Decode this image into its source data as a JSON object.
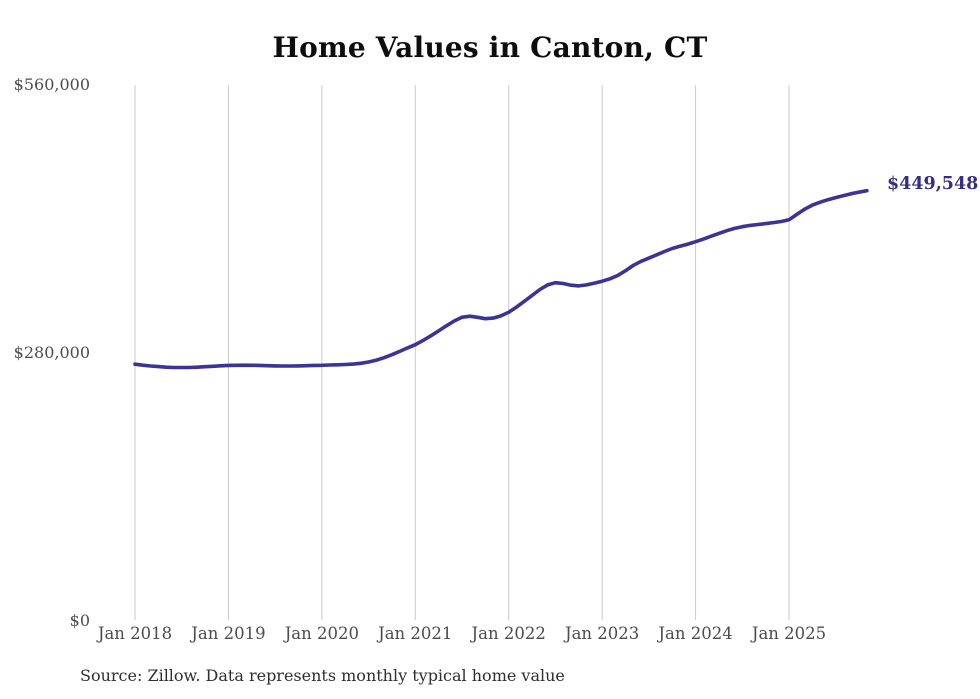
{
  "chart": {
    "title": "Home Values in Canton, CT",
    "source_note": "Source: Zillow. Data represents monthly typical home value",
    "last_value_label": "$449,548"
  },
  "colors": {
    "line": "#3c3494",
    "last_value_label": "#322e82",
    "gridline": "#cbcbcb",
    "axis_tick_text": "#4c4c4c",
    "title_text": "#0d0d0d",
    "source_text": "#2e2e2e",
    "background": "#ffffff"
  },
  "chart_data": {
    "type": "line",
    "title": "Home Values in Canton, CT",
    "xlabel": "",
    "ylabel": "",
    "x_tick_labels": [
      "Jan 2018",
      "Jan 2019",
      "Jan 2020",
      "Jan 2021",
      "Jan 2022",
      "Jan 2023",
      "Jan 2024",
      "Jan 2025"
    ],
    "y_tick_labels": [
      "$0",
      "$280,000",
      "$560,000"
    ],
    "ylim": [
      0,
      560000
    ],
    "grid": "vertical-year-gridlines-only",
    "legend": "none",
    "frequency": "monthly",
    "x_start": "Jan 2018",
    "x_end": "Nov 2025",
    "series": [
      {
        "name": "Typical home value",
        "values": [
          268300,
          267300,
          266400,
          265800,
          265200,
          264900,
          264800,
          264900,
          265200,
          265700,
          266100,
          266600,
          267000,
          267200,
          267300,
          267200,
          267000,
          266700,
          266500,
          266400,
          266400,
          266500,
          266700,
          267000,
          267200,
          267500,
          267700,
          268000,
          268400,
          269200,
          270600,
          272600,
          275100,
          278200,
          281700,
          285300,
          288700,
          293200,
          298000,
          303100,
          308400,
          313400,
          317300,
          318400,
          317300,
          315800,
          316500,
          318800,
          322600,
          328000,
          334000,
          340200,
          346300,
          351200,
          353400,
          352600,
          350800,
          350100,
          351200,
          353000,
          355000,
          357500,
          361000,
          366000,
          371500,
          375800,
          379200,
          382600,
          386000,
          389200,
          391600,
          393800,
          396300,
          399000,
          402000,
          405000,
          407800,
          410200,
          412000,
          413300,
          414300,
          415200,
          416200,
          417400,
          419200,
          424800,
          430200,
          434500,
          437600,
          440200,
          442400,
          444500,
          446400,
          448100,
          449548
        ]
      }
    ],
    "last_value": 449548,
    "annotations": [
      {
        "text": "$449,548",
        "position": "end-of-line"
      }
    ]
  }
}
